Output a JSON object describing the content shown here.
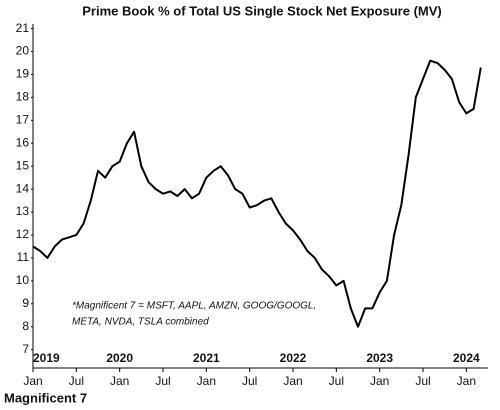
{
  "chart_data": {
    "type": "line",
    "title": "Prime Book % of Total US Single Stock Net Exposure (MV)",
    "annotation": [
      "*Magnificent 7 = MSFT, AAPL, AMZN, GOOG/GOOGL,",
      "META, NVDA, TSLA combined"
    ],
    "footer": "Magnificent 7",
    "x": [
      "2019-01",
      "2019-02",
      "2019-03",
      "2019-04",
      "2019-05",
      "2019-06",
      "2019-07",
      "2019-08",
      "2019-09",
      "2019-10",
      "2019-11",
      "2019-12",
      "2020-01",
      "2020-02",
      "2020-03",
      "2020-04",
      "2020-05",
      "2020-06",
      "2020-07",
      "2020-08",
      "2020-09",
      "2020-10",
      "2020-11",
      "2020-12",
      "2021-01",
      "2021-02",
      "2021-03",
      "2021-04",
      "2021-05",
      "2021-06",
      "2021-07",
      "2021-08",
      "2021-09",
      "2021-10",
      "2021-11",
      "2021-12",
      "2022-01",
      "2022-02",
      "2022-03",
      "2022-04",
      "2022-05",
      "2022-06",
      "2022-07",
      "2022-08",
      "2022-09",
      "2022-10",
      "2022-11",
      "2022-12",
      "2023-01",
      "2023-02",
      "2023-03",
      "2023-04",
      "2023-05",
      "2023-06",
      "2023-07",
      "2023-08",
      "2023-09",
      "2023-10",
      "2023-11",
      "2023-12",
      "2024-01",
      "2024-02",
      "2024-03"
    ],
    "series": [
      {
        "name": "Magnificent 7",
        "color": "#000000",
        "values": [
          11.5,
          11.3,
          11.0,
          11.5,
          11.8,
          11.9,
          12.0,
          12.5,
          13.5,
          14.8,
          14.5,
          15.0,
          15.2,
          16.0,
          16.5,
          15.0,
          14.3,
          14.0,
          13.8,
          13.9,
          13.7,
          14.0,
          13.6,
          13.8,
          14.5,
          14.8,
          15.0,
          14.6,
          14.0,
          13.8,
          13.2,
          13.3,
          13.5,
          13.6,
          13.0,
          12.5,
          12.2,
          11.8,
          11.3,
          11.0,
          10.5,
          10.2,
          9.8,
          10.0,
          8.8,
          8.0,
          8.8,
          8.8,
          9.5,
          10.0,
          12.0,
          13.3,
          15.5,
          18.0,
          18.8,
          19.6,
          19.5,
          19.2,
          18.8,
          17.8,
          17.3,
          17.5,
          19.3
        ]
      }
    ],
    "xlim": [
      "2019-01",
      "2024-04"
    ],
    "xticks": [
      {
        "value": "2019-01",
        "label": "Jan"
      },
      {
        "value": "2019-07",
        "label": "Jul"
      },
      {
        "value": "2020-01",
        "label": "Jan"
      },
      {
        "value": "2020-07",
        "label": "Jul"
      },
      {
        "value": "2021-01",
        "label": "Jan"
      },
      {
        "value": "2021-07",
        "label": "Jul"
      },
      {
        "value": "2022-01",
        "label": "Jan"
      },
      {
        "value": "2022-07",
        "label": "Jul"
      },
      {
        "value": "2023-01",
        "label": "Jan"
      },
      {
        "value": "2023-07",
        "label": "Jul"
      },
      {
        "value": "2024-01",
        "label": "Jan"
      }
    ],
    "xtick_years": [
      {
        "value": "2019-01",
        "label": "2019"
      },
      {
        "value": "2020-01",
        "label": "2020"
      },
      {
        "value": "2021-01",
        "label": "2021"
      },
      {
        "value": "2022-01",
        "label": "2022"
      },
      {
        "value": "2023-01",
        "label": "2023"
      },
      {
        "value": "2024-01",
        "label": "2024"
      }
    ],
    "ylim": [
      6.2,
      21.2
    ],
    "yticks": [
      7,
      8,
      9,
      10,
      11,
      12,
      13,
      14,
      15,
      16,
      17,
      18,
      19,
      20,
      21
    ]
  }
}
